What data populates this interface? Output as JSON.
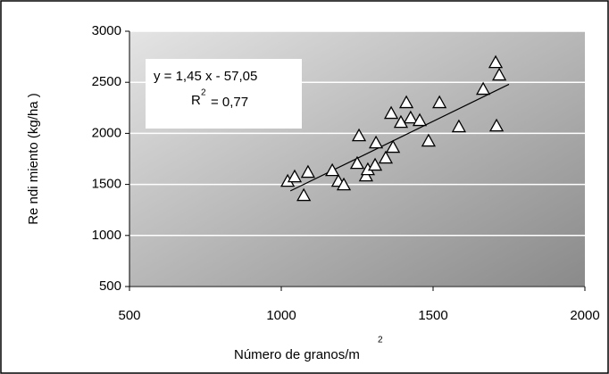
{
  "chart_data": {
    "type": "scatter",
    "xlabel": {
      "text": "Número de granos/m",
      "sup": "2"
    },
    "ylabel": "Re ndi miento (kg/ha )",
    "x": [
      1021,
      1044,
      1088,
      1074,
      1168,
      1188,
      1206,
      1250,
      1256,
      1279,
      1285,
      1309,
      1312,
      1344,
      1368,
      1362,
      1412,
      1426,
      1456,
      1485,
      1521,
      1585,
      1665,
      1706,
      1718,
      1709,
      1394
    ],
    "values": [
      1531,
      1575,
      1619,
      1392,
      1636,
      1531,
      1496,
      1706,
      1977,
      1584,
      1645,
      1689,
      1907,
      1759,
      1864,
      2196,
      2301,
      2152,
      2126,
      1925,
      2301,
      2065,
      2432,
      2694,
      2572,
      2073,
      2108
    ],
    "xlim": [
      500,
      2000
    ],
    "xticks": [
      500,
      1000,
      1500,
      2000
    ],
    "ylim": [
      500,
      3000
    ],
    "yticks": [
      500,
      1000,
      1500,
      2000,
      2500,
      3000
    ],
    "grid": true,
    "trendline": {
      "slope": 1.45,
      "intercept": -57.05,
      "x_range": [
        1030,
        1750
      ]
    },
    "annotation": {
      "equation": "y = 1,45 x - 57,05",
      "r2_base": "R",
      "r2_sup": "2",
      "r2_rest": "= 0,77"
    }
  }
}
